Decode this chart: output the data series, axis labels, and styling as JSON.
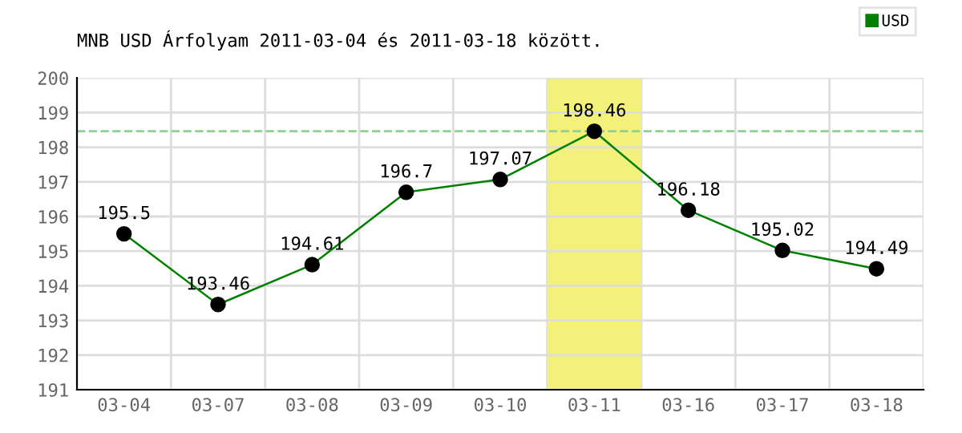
{
  "chart_data": {
    "type": "line",
    "title": "MNB USD Árfolyam 2011-03-04 és 2011-03-18 között.",
    "categories": [
      "03-04",
      "03-07",
      "03-08",
      "03-09",
      "03-10",
      "03-11",
      "03-16",
      "03-17",
      "03-18"
    ],
    "series": [
      {
        "name": "USD",
        "color": "#008000",
        "values": [
          195.5,
          193.46,
          194.61,
          196.7,
          197.07,
          198.46,
          196.18,
          195.02,
          194.49
        ]
      }
    ],
    "ylim": [
      191,
      200
    ],
    "yticks": [
      191,
      192,
      193,
      194,
      195,
      196,
      197,
      198,
      199,
      200
    ],
    "grid": true,
    "legend": "top right",
    "marker": "circle",
    "line_style": "solid",
    "data_labels": true,
    "ref_lines": [
      {
        "axis": "y",
        "value": 198.46,
        "color": "#90d090",
        "line_style": "dashed"
      }
    ],
    "bands": [
      {
        "axis": "x",
        "from": "03-11",
        "to": "03-11",
        "color": "#f3f17a"
      }
    ]
  }
}
